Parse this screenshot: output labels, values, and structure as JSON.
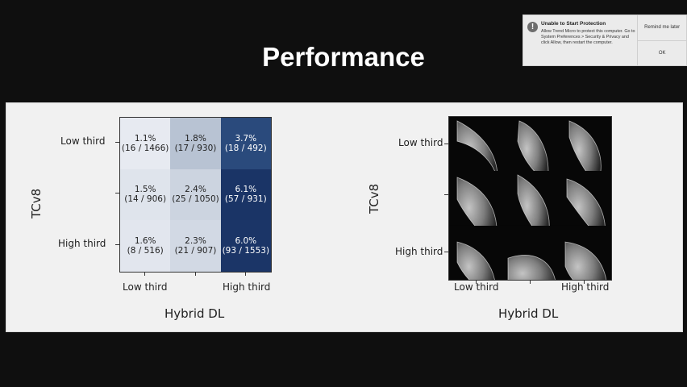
{
  "slide": {
    "title": "Performance"
  },
  "notification": {
    "icon": "alert-icon",
    "title": "Unable to Start Protection",
    "body": "Allow Trend Micro to protect this computer. Go to System Preferences > Security & Privacy and click Allow, then restart the computer.",
    "remind_label": "Remind me later",
    "ok_label": "OK"
  },
  "left_chart": {
    "ylabel": "TCv8",
    "xlabel": "Hybrid DL",
    "yticks": [
      "Low third",
      "",
      "High third"
    ],
    "xticks": [
      "Low third",
      "",
      "High third"
    ]
  },
  "right_chart": {
    "ylabel": "TCv8",
    "xlabel": "Hybrid DL",
    "yticks": [
      "Low third",
      "",
      "High third"
    ],
    "xticks": [
      "Low third",
      "",
      "High third"
    ]
  },
  "chart_data": {
    "type": "heatmap",
    "rows": [
      "Low third",
      "",
      "High third"
    ],
    "columns": [
      "Low third",
      "",
      "High third"
    ],
    "cells": [
      [
        {
          "pct": "1.1%",
          "count": "(16 / 1466)",
          "value": 1.1,
          "color": "#e7eaf1",
          "dark": false
        },
        {
          "pct": "1.8%",
          "count": "(17 / 930)",
          "value": 1.8,
          "color": "#b8c3d3",
          "dark": false
        },
        {
          "pct": "3.7%",
          "count": "(18 / 492)",
          "value": 3.7,
          "color": "#2a4a7c",
          "dark": true
        }
      ],
      [
        {
          "pct": "1.5%",
          "count": "(14 / 906)",
          "value": 1.5,
          "color": "#dfe4ec",
          "dark": false
        },
        {
          "pct": "2.4%",
          "count": "(25 / 1050)",
          "value": 2.4,
          "color": "#ccd4e0",
          "dark": false
        },
        {
          "pct": "6.1%",
          "count": "(57 / 931)",
          "value": 6.1,
          "color": "#1a3466",
          "dark": true
        }
      ],
      [
        {
          "pct": "1.6%",
          "count": "(8 / 516)",
          "value": 1.6,
          "color": "#e2e6ee",
          "dark": false
        },
        {
          "pct": "2.3%",
          "count": "(21 / 907)",
          "value": 2.3,
          "color": "#d2d9e4",
          "dark": false
        },
        {
          "pct": "6.0%",
          "count": "(93 / 1553)",
          "value": 6.0,
          "color": "#1b3567",
          "dark": true
        }
      ]
    ],
    "xlabel": "Hybrid DL",
    "ylabel": "TCv8"
  }
}
